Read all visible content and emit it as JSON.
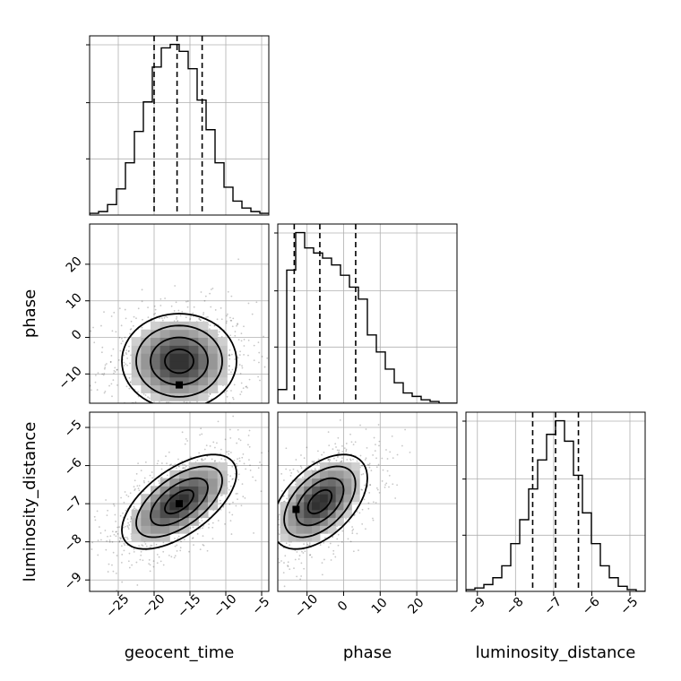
{
  "chart_data": {
    "type": "corner",
    "parameters": [
      "geocent_time",
      "phase",
      "luminosity_distance"
    ],
    "grid": true,
    "quantile_lines": "dashed",
    "ranges": {
      "geocent_time": [
        -29,
        -4
      ],
      "phase": [
        -18,
        31
      ],
      "luminosity_distance": [
        -9.3,
        -4.6
      ]
    },
    "ticks": {
      "geocent_time": {
        "values": [
          -25,
          -20,
          -15,
          -10,
          -5
        ],
        "labels": [
          "−25",
          "−20",
          "−15",
          "−10",
          "−5"
        ]
      },
      "phase": {
        "values": [
          -10,
          0,
          10,
          20
        ],
        "labels": [
          "−10",
          "0",
          "10",
          "20"
        ]
      },
      "luminosity_distance": {
        "values": [
          -9,
          -8,
          -7,
          -6,
          -5
        ],
        "labels": [
          "−9",
          "−8",
          "−7",
          "−6",
          "−5"
        ]
      }
    },
    "histograms": [
      {
        "parameter": "geocent_time",
        "bin_edges": [
          -29.0,
          -27.75,
          -26.5,
          -25.25,
          -24.0,
          -22.75,
          -21.5,
          -20.25,
          -19.0,
          -17.75,
          -16.5,
          -15.25,
          -14.0,
          -12.75,
          -11.5,
          -10.25,
          -9.0,
          -7.75,
          -6.5,
          -5.25,
          -4.0
        ],
        "counts": [
          1,
          2,
          6,
          15,
          30,
          48,
          65,
          85,
          96,
          98,
          94,
          84,
          66,
          49,
          30,
          16,
          8,
          4,
          2,
          1
        ],
        "quantiles": [
          -20.0,
          -16.8,
          -13.3
        ]
      },
      {
        "parameter": "phase",
        "bin_edges": [
          -18.0,
          -15.55,
          -13.1,
          -10.65,
          -8.2,
          -5.75,
          -3.3,
          -0.85,
          1.6,
          4.05,
          6.5,
          8.95,
          11.4,
          13.85,
          16.3,
          18.75,
          21.2,
          23.65,
          26.1,
          28.55,
          31.0
        ],
        "counts": [
          8,
          78,
          100,
          91,
          88,
          85,
          81,
          75,
          68,
          61,
          40,
          30,
          20,
          12,
          6,
          4,
          2,
          1,
          0,
          0
        ],
        "quantiles": [
          -13.5,
          -6.5,
          3.3
        ]
      },
      {
        "parameter": "luminosity_distance",
        "bin_edges": [
          -9.3,
          -9.065,
          -8.83,
          -8.595,
          -8.36,
          -8.125,
          -7.89,
          -7.655,
          -7.42,
          -7.185,
          -6.95,
          -6.715,
          -6.48,
          -6.245,
          -6.01,
          -5.775,
          -5.54,
          -5.305,
          -5.07,
          -4.835,
          -4.6
        ],
        "counts": [
          1,
          2,
          4,
          8,
          15,
          28,
          42,
          60,
          77,
          92,
          100,
          88,
          68,
          46,
          28,
          15,
          8,
          3,
          1,
          0
        ],
        "quantiles": [
          -7.55,
          -6.95,
          -6.35
        ]
      }
    ],
    "contours_2d": [
      {
        "x": "geocent_time",
        "y": "phase",
        "mean": [
          -16.5,
          -6.5
        ],
        "sd": [
          4.0,
          6.5
        ],
        "corr": 0.0,
        "peak": [
          -16.5,
          -13.0
        ],
        "levels_sigma": [
          0.5,
          1.0,
          1.5,
          2.0
        ]
      },
      {
        "x": "geocent_time",
        "y": "luminosity_distance",
        "mean": [
          -16.5,
          -6.95
        ],
        "sd": [
          4.0,
          0.62
        ],
        "corr": 0.6,
        "peak": [
          -16.5,
          -7.0
        ],
        "levels_sigma": [
          0.5,
          1.0,
          1.5,
          2.0
        ]
      },
      {
        "x": "phase",
        "y": "luminosity_distance",
        "mean": [
          -6.5,
          -6.95
        ],
        "sd": [
          6.5,
          0.62
        ],
        "corr": 0.5,
        "peak": [
          -13.0,
          -7.15
        ],
        "levels_sigma": [
          0.5,
          1.0,
          1.5,
          2.0
        ]
      }
    ]
  }
}
